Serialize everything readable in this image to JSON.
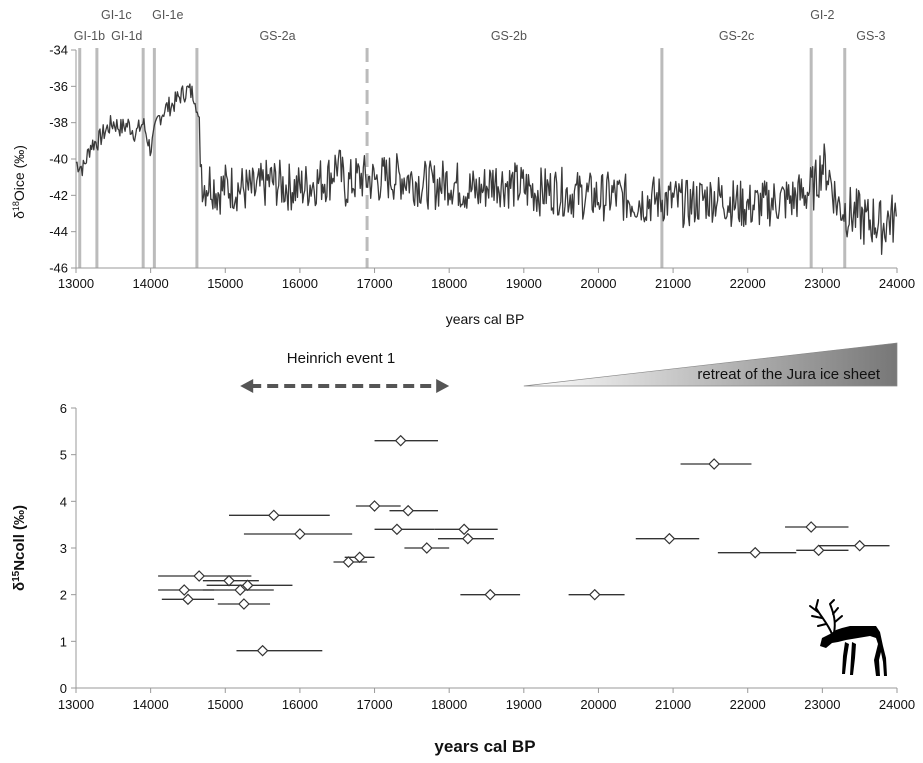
{
  "chart_data": [
    {
      "type": "line",
      "ylabel": "δ18Oice (‰)",
      "ylabel_parts": {
        "base": "δ",
        "sup": "18",
        "rest": "Oice (‰)"
      },
      "xlabel": "years cal BP",
      "xlim": [
        13000,
        24000
      ],
      "ylim": [
        -46,
        -34
      ],
      "xticks": [
        13000,
        14000,
        15000,
        16000,
        17000,
        18000,
        19000,
        20000,
        21000,
        22000,
        23000,
        24000
      ],
      "yticks": [
        -34,
        -36,
        -38,
        -40,
        -42,
        -44,
        -46
      ],
      "stage_boundaries": [
        {
          "x": 13050,
          "dashed": false
        },
        {
          "x": 13280,
          "dashed": false
        },
        {
          "x": 13900,
          "dashed": false
        },
        {
          "x": 14050,
          "dashed": false
        },
        {
          "x": 14620,
          "dashed": false
        },
        {
          "x": 16900,
          "dashed": true
        },
        {
          "x": 20850,
          "dashed": false
        },
        {
          "x": 22850,
          "dashed": false
        },
        {
          "x": 23300,
          "dashed": false
        }
      ],
      "stage_labels": [
        {
          "text": "GI-1b",
          "x": 13180,
          "row": 1
        },
        {
          "text": "GI-1c",
          "x": 13540,
          "row": 0
        },
        {
          "text": "GI-1d",
          "x": 13680,
          "row": 1
        },
        {
          "text": "GI-1e",
          "x": 14230,
          "row": 0
        },
        {
          "text": "GS-2a",
          "x": 15700,
          "row": 1
        },
        {
          "text": "GS-2b",
          "x": 18800,
          "row": 1
        },
        {
          "text": "GS-2c",
          "x": 21850,
          "row": 1
        },
        {
          "text": "GI-2",
          "x": 23000,
          "row": 0
        },
        {
          "text": "GS-3",
          "x": 23650,
          "row": 1
        }
      ],
      "series": [
        {
          "values_note": "",
          "x": [
            13000,
            13100,
            13200,
            13300,
            13400,
            13500,
            13600,
            13700,
            13800,
            13900,
            14000,
            14100,
            14200,
            14300,
            14400,
            14500,
            14600,
            14650,
            14700,
            14800,
            14900,
            15000,
            15200,
            15400,
            15600,
            15800,
            16000,
            16200,
            16400,
            16500,
            16600,
            16800,
            17000,
            17200,
            17400,
            17600,
            17800,
            18000,
            18200,
            18400,
            18600,
            18800,
            19000,
            19200,
            19400,
            19600,
            19800,
            20000,
            20200,
            20400,
            20600,
            20800,
            21000,
            21200,
            21400,
            21600,
            21800,
            22000,
            22200,
            22400,
            22600,
            22800,
            22900,
            23000,
            23100,
            23200,
            23300,
            23400,
            23500,
            23600,
            23700,
            23800,
            23900,
            24000
          ],
          "y": [
            -40.2,
            -40.5,
            -39.2,
            -39.0,
            -38.4,
            -38.0,
            -38.3,
            -38.1,
            -38.6,
            -38.0,
            -39.5,
            -37.8,
            -37.2,
            -37.0,
            -36.5,
            -36.2,
            -36.5,
            -38.5,
            -41.5,
            -41.2,
            -41.8,
            -41.5,
            -41.6,
            -41.8,
            -41.2,
            -41.5,
            -41.6,
            -41.3,
            -41.0,
            -40.2,
            -41.5,
            -41.0,
            -41.2,
            -41.0,
            -41.0,
            -41.3,
            -41.5,
            -41.2,
            -41.6,
            -41.8,
            -41.2,
            -41.4,
            -41.6,
            -41.8,
            -41.7,
            -41.9,
            -42.0,
            -42.1,
            -42.0,
            -42.2,
            -42.3,
            -42.2,
            -42.3,
            -42.5,
            -42.2,
            -42.1,
            -42.4,
            -42.6,
            -42.5,
            -42.3,
            -42.2,
            -41.8,
            -41.5,
            -40.2,
            -41.0,
            -42.5,
            -42.8,
            -43.0,
            -43.2,
            -43.5,
            -43.3,
            -43.8,
            -43.2,
            -43.5
          ]
        }
      ]
    },
    {
      "type": "scatter",
      "ylabel": "δ15Ncoll (‰)",
      "ylabel_parts": {
        "base": "δ",
        "sup": "15",
        "rest": "Ncoll (‰)"
      },
      "xlabel": "years cal BP",
      "xlim": [
        13000,
        24000
      ],
      "ylim": [
        0,
        6
      ],
      "xticks": [
        13000,
        14000,
        15000,
        16000,
        17000,
        18000,
        19000,
        20000,
        21000,
        22000,
        23000,
        24000
      ],
      "yticks": [
        0,
        1,
        2,
        3,
        4,
        5,
        6
      ],
      "points": [
        {
          "x": 17350,
          "y": 5.3,
          "xerr_low": 17000,
          "xerr_high": 17850
        },
        {
          "x": 21550,
          "y": 4.8,
          "xerr_low": 21100,
          "xerr_high": 22050
        },
        {
          "x": 17000,
          "y": 3.9,
          "xerr_low": 16750,
          "xerr_high": 17350
        },
        {
          "x": 17450,
          "y": 3.8,
          "xerr_low": 17200,
          "xerr_high": 17850
        },
        {
          "x": 15650,
          "y": 3.7,
          "xerr_low": 15050,
          "xerr_high": 16400
        },
        {
          "x": 22850,
          "y": 3.45,
          "xerr_low": 22500,
          "xerr_high": 23350
        },
        {
          "x": 17300,
          "y": 3.4,
          "xerr_low": 17000,
          "xerr_high": 17800
        },
        {
          "x": 18200,
          "y": 3.4,
          "xerr_low": 17800,
          "xerr_high": 18650
        },
        {
          "x": 16000,
          "y": 3.3,
          "xerr_low": 15250,
          "xerr_high": 16700
        },
        {
          "x": 18250,
          "y": 3.2,
          "xerr_low": 17850,
          "xerr_high": 18600
        },
        {
          "x": 20950,
          "y": 3.2,
          "xerr_low": 20500,
          "xerr_high": 21350
        },
        {
          "x": 23500,
          "y": 3.05,
          "xerr_low": 22950,
          "xerr_high": 23900
        },
        {
          "x": 17700,
          "y": 3.0,
          "xerr_low": 17400,
          "xerr_high": 18000
        },
        {
          "x": 22950,
          "y": 2.95,
          "xerr_low": 22650,
          "xerr_high": 23350
        },
        {
          "x": 22100,
          "y": 2.9,
          "xerr_low": 21600,
          "xerr_high": 22650
        },
        {
          "x": 16800,
          "y": 2.8,
          "xerr_low": 16600,
          "xerr_high": 17000
        },
        {
          "x": 16650,
          "y": 2.7,
          "xerr_low": 16450,
          "xerr_high": 16900
        },
        {
          "x": 14650,
          "y": 2.4,
          "xerr_low": 14100,
          "xerr_high": 15350
        },
        {
          "x": 15050,
          "y": 2.3,
          "xerr_low": 14700,
          "xerr_high": 15450
        },
        {
          "x": 15300,
          "y": 2.2,
          "xerr_low": 14750,
          "xerr_high": 15900
        },
        {
          "x": 14450,
          "y": 2.1,
          "xerr_low": 14100,
          "xerr_high": 14850
        },
        {
          "x": 15200,
          "y": 2.1,
          "xerr_low": 14700,
          "xerr_high": 15650
        },
        {
          "x": 18550,
          "y": 2.0,
          "xerr_low": 18150,
          "xerr_high": 18950
        },
        {
          "x": 19950,
          "y": 2.0,
          "xerr_low": 19600,
          "xerr_high": 20350
        },
        {
          "x": 14500,
          "y": 1.9,
          "xerr_low": 14150,
          "xerr_high": 14850
        },
        {
          "x": 15250,
          "y": 1.8,
          "xerr_low": 14900,
          "xerr_high": 15600
        },
        {
          "x": 15500,
          "y": 0.8,
          "xerr_low": 15150,
          "xerr_high": 16300
        }
      ],
      "annotations": {
        "heinrich_text": "Heinrich event 1",
        "heinrich_range": [
          15200,
          18000
        ],
        "jura_text": "retreat of the Jura ice sheet",
        "jura_start": 19000
      },
      "reindeer_icon": "reindeer-silhouette-icon"
    }
  ],
  "colors": {
    "line": "#3a3a3a",
    "stage_line": "#bbbbbb",
    "axis": "#999999",
    "marker_fill": "#ffffff",
    "marker_stroke": "#333333",
    "arrow": "#555555",
    "wedge_dark": "#777777",
    "wedge_light": "#ffffff"
  }
}
